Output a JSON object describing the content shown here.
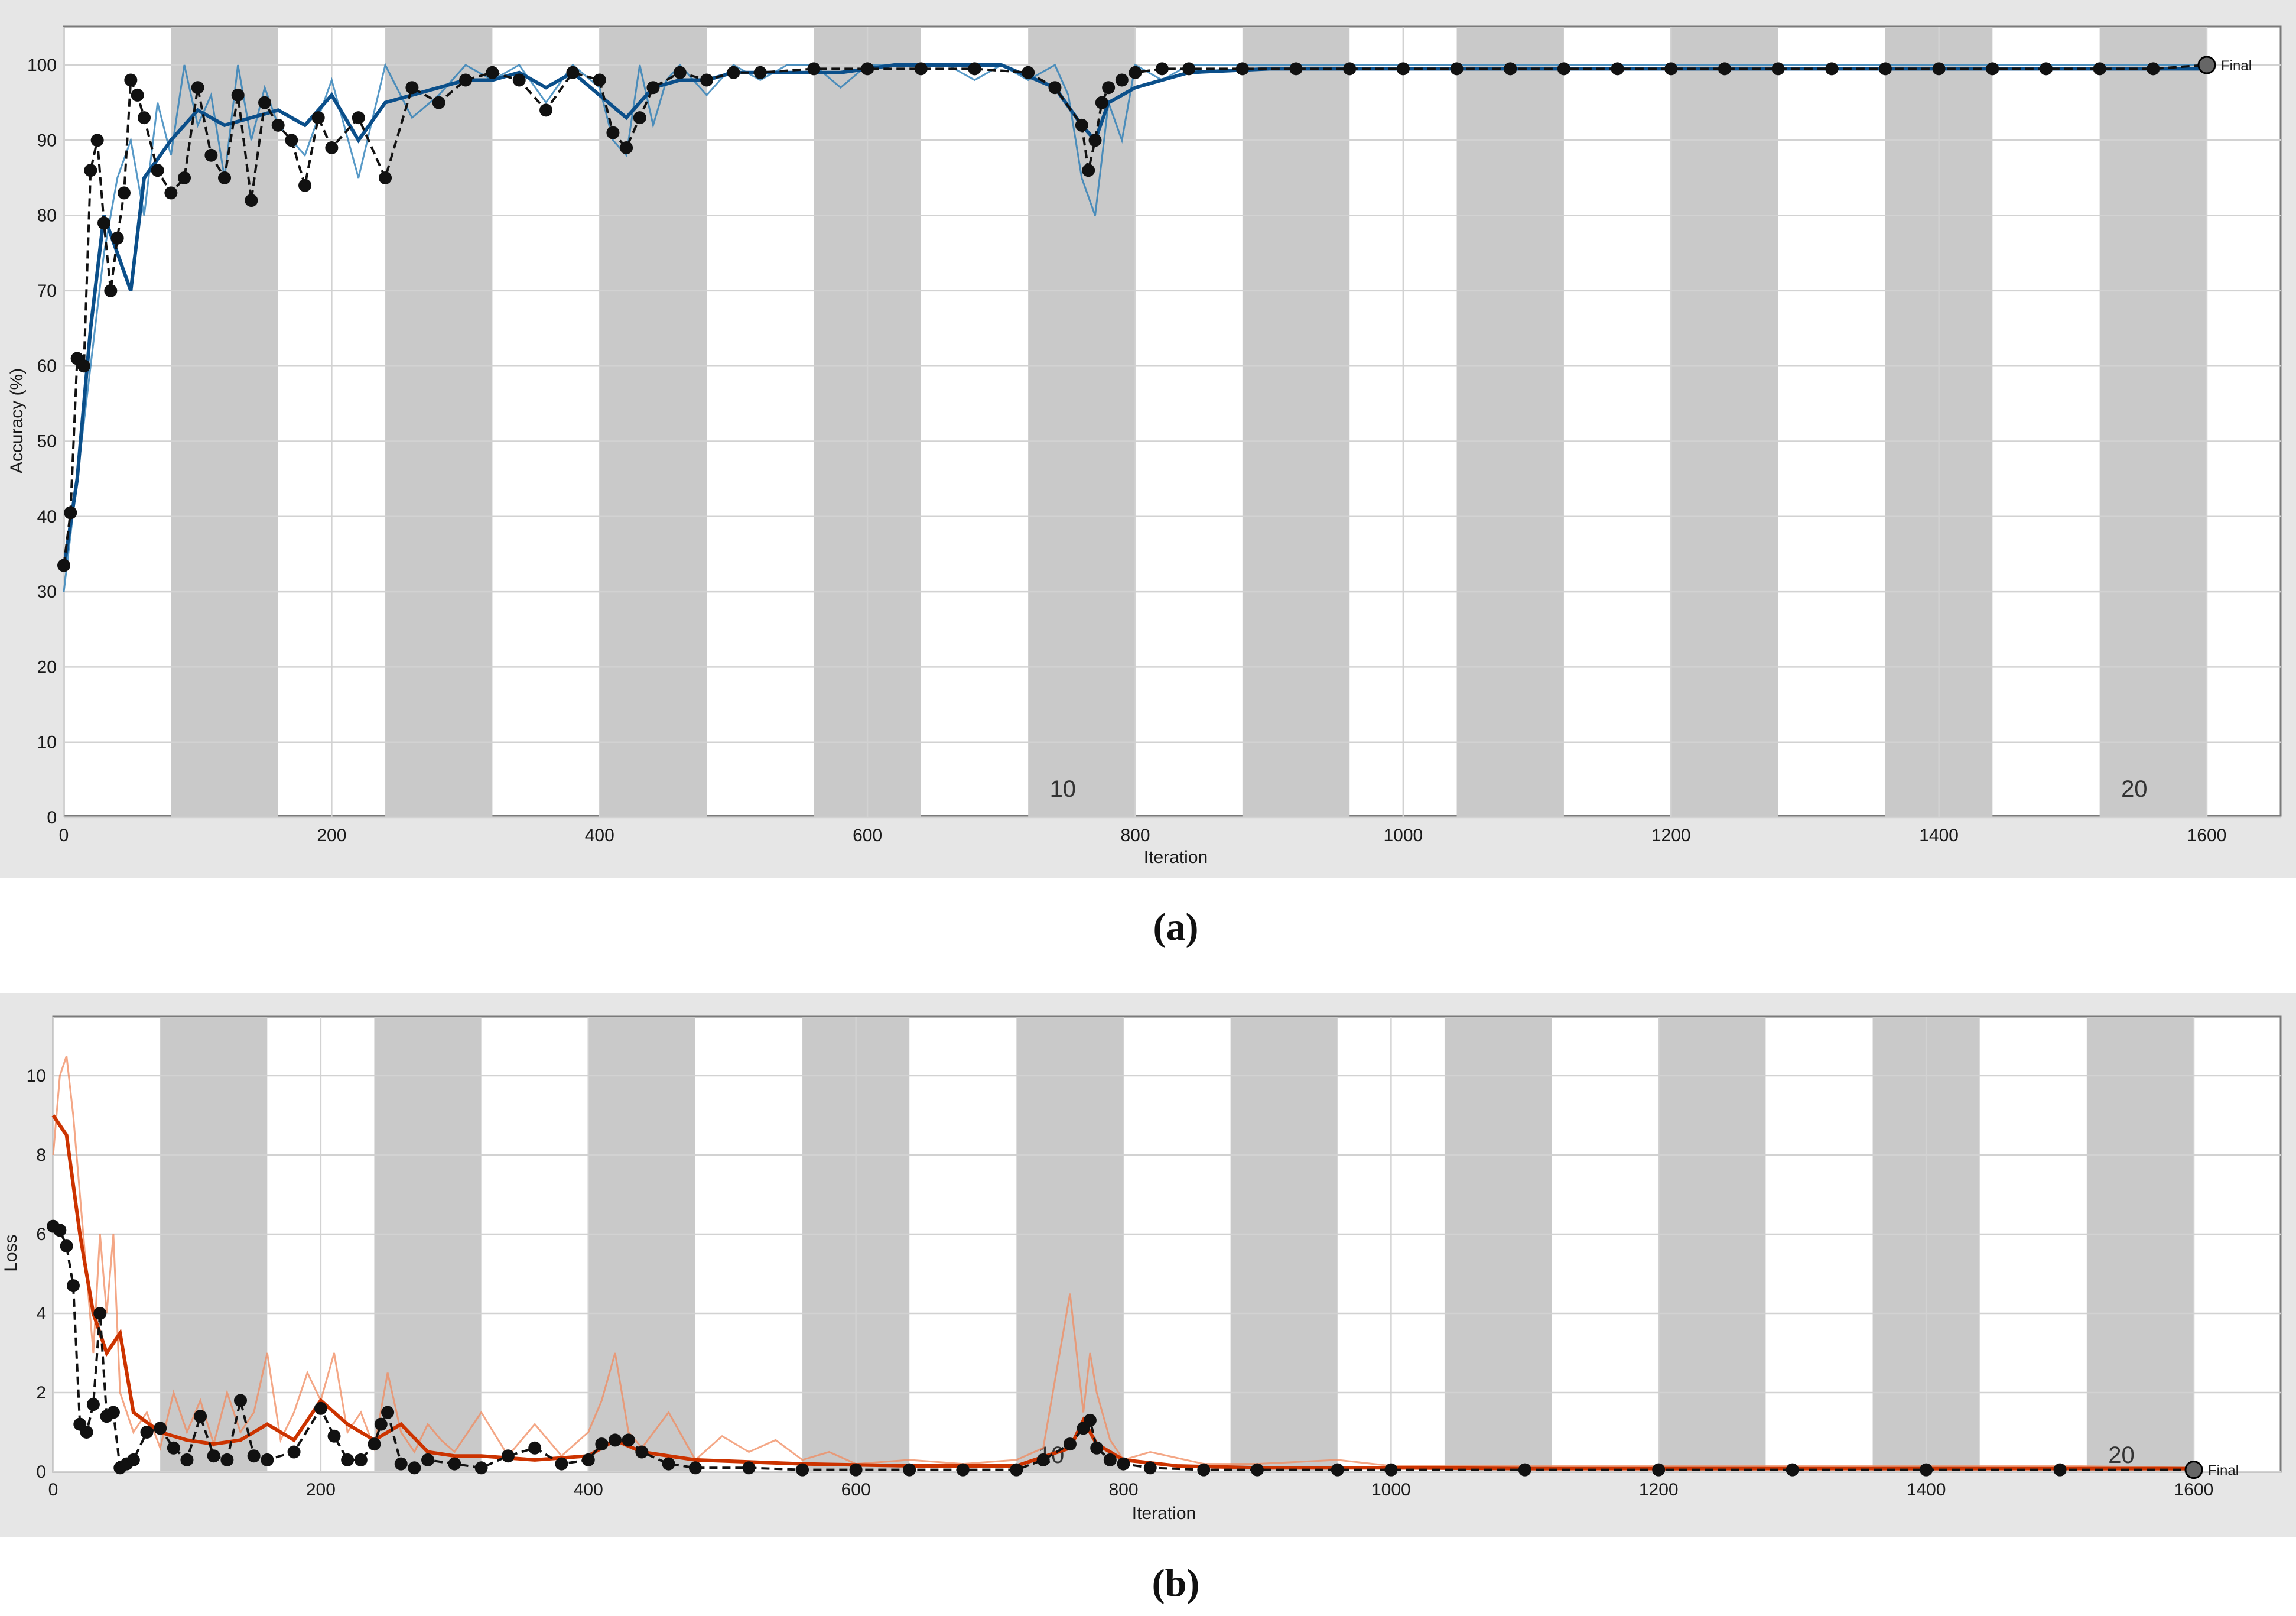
{
  "chart_data": [
    {
      "type": "line",
      "panel_label": "(a)",
      "ylabel": "Accuracy (%)",
      "xlabel": "Iteration",
      "xlim": [
        0,
        1600
      ],
      "ylim": [
        0,
        100
      ],
      "x_ticks": [
        0,
        200,
        400,
        600,
        800,
        1000,
        1200,
        1400,
        1600
      ],
      "y_ticks": [
        0,
        10,
        20,
        30,
        40,
        50,
        60,
        70,
        80,
        90,
        100
      ],
      "grid": true,
      "epoch_bands": [
        [
          80,
          160
        ],
        [
          240,
          320
        ],
        [
          400,
          480
        ],
        [
          560,
          640
        ],
        [
          720,
          800
        ],
        [
          880,
          960
        ],
        [
          1040,
          1120
        ],
        [
          1200,
          1280
        ],
        [
          1360,
          1440
        ],
        [
          1520,
          1600
        ]
      ],
      "epoch_markers": [
        {
          "x": 730,
          "label": "10"
        },
        {
          "x": 1530,
          "label": "20"
        }
      ],
      "final_label": "Final",
      "colors": {
        "training": "#1f77b4",
        "smoothed": "#0b4f8a",
        "validation": "#111111"
      },
      "series": [
        {
          "role": "training",
          "x": [
            0,
            10,
            20,
            30,
            40,
            50,
            60,
            70,
            80,
            90,
            100,
            110,
            120,
            130,
            140,
            150,
            160,
            180,
            200,
            220,
            240,
            260,
            280,
            300,
            320,
            340,
            360,
            380,
            400,
            410,
            420,
            430,
            440,
            450,
            460,
            480,
            500,
            520,
            540,
            560,
            580,
            600,
            620,
            640,
            660,
            680,
            700,
            720,
            740,
            750,
            760,
            770,
            780,
            790,
            800,
            820,
            840,
            860,
            880,
            900,
            940,
            980,
            1020,
            1060,
            1100,
            1140,
            1180,
            1220,
            1260,
            1300,
            1340,
            1380,
            1420,
            1460,
            1500,
            1540,
            1580,
            1600
          ],
          "y": [
            30,
            45,
            60,
            75,
            85,
            90,
            80,
            95,
            88,
            100,
            92,
            96,
            85,
            100,
            90,
            97,
            92,
            88,
            98,
            85,
            100,
            93,
            96,
            100,
            98,
            100,
            95,
            100,
            97,
            90,
            88,
            100,
            92,
            98,
            100,
            96,
            100,
            98,
            100,
            100,
            97,
            100,
            100,
            100,
            100,
            98,
            100,
            98,
            100,
            96,
            85,
            80,
            95,
            90,
            100,
            98,
            100,
            100,
            100,
            100,
            100,
            100,
            100,
            100,
            100,
            100,
            100,
            100,
            100,
            100,
            100,
            100,
            100,
            100,
            100,
            100,
            100,
            100
          ]
        },
        {
          "role": "smoothed",
          "x": [
            0,
            10,
            20,
            30,
            40,
            50,
            60,
            80,
            100,
            120,
            140,
            160,
            180,
            200,
            220,
            240,
            260,
            280,
            300,
            320,
            340,
            360,
            380,
            400,
            420,
            440,
            460,
            480,
            500,
            540,
            580,
            620,
            660,
            700,
            740,
            760,
            770,
            780,
            800,
            840,
            900,
            1000,
            1100,
            1200,
            1300,
            1400,
            1500,
            1600
          ],
          "y": [
            33,
            45,
            65,
            80,
            75,
            70,
            85,
            90,
            94,
            92,
            93,
            94,
            92,
            96,
            90,
            95,
            96,
            97,
            98,
            98,
            99,
            97,
            99,
            96,
            93,
            97,
            98,
            98,
            99,
            99,
            99,
            100,
            100,
            100,
            97,
            92,
            90,
            95,
            97,
            99,
            99.5,
            99.5,
            99.5,
            99.5,
            99.5,
            99.5,
            99.5,
            99.5
          ]
        },
        {
          "role": "validation",
          "x": [
            0,
            5,
            10,
            15,
            20,
            25,
            30,
            35,
            40,
            45,
            50,
            55,
            60,
            70,
            80,
            90,
            100,
            110,
            120,
            130,
            140,
            150,
            160,
            170,
            180,
            190,
            200,
            220,
            240,
            260,
            280,
            300,
            320,
            340,
            360,
            380,
            400,
            410,
            420,
            430,
            440,
            460,
            480,
            500,
            520,
            560,
            600,
            640,
            680,
            720,
            740,
            760,
            765,
            770,
            775,
            780,
            790,
            800,
            820,
            840,
            880,
            920,
            960,
            1000,
            1040,
            1080,
            1120,
            1160,
            1200,
            1240,
            1280,
            1320,
            1360,
            1400,
            1440,
            1480,
            1520,
            1560,
            1600
          ],
          "y": [
            33.5,
            40.5,
            61,
            60,
            86,
            90,
            79,
            70,
            77,
            83,
            98,
            96,
            93,
            86,
            83,
            85,
            97,
            88,
            85,
            96,
            82,
            95,
            92,
            90,
            84,
            93,
            89,
            93,
            85,
            97,
            95,
            98,
            99,
            98,
            94,
            99,
            98,
            91,
            89,
            93,
            97,
            99,
            98,
            99,
            99,
            99.5,
            99.5,
            99.5,
            99.5,
            99,
            97,
            92,
            86,
            90,
            95,
            97,
            98,
            99,
            99.5,
            99.5,
            99.5,
            99.5,
            99.5,
            99.5,
            99.5,
            99.5,
            99.5,
            99.5,
            99.5,
            99.5,
            99.5,
            99.5,
            99.5,
            99.5,
            99.5,
            99.5,
            99.5,
            99.5,
            100
          ]
        }
      ]
    },
    {
      "type": "line",
      "panel_label": "(b)",
      "ylabel": "Loss",
      "xlabel": "Iteration",
      "xlim": [
        0,
        1600
      ],
      "ylim": [
        0,
        11
      ],
      "x_ticks": [
        0,
        200,
        400,
        600,
        800,
        1000,
        1200,
        1400,
        1600
      ],
      "y_ticks": [
        0,
        2,
        4,
        6,
        8,
        10
      ],
      "grid": true,
      "epoch_bands": [
        [
          80,
          160
        ],
        [
          240,
          320
        ],
        [
          400,
          480
        ],
        [
          560,
          640
        ],
        [
          720,
          800
        ],
        [
          880,
          960
        ],
        [
          1040,
          1120
        ],
        [
          1200,
          1280
        ],
        [
          1360,
          1440
        ],
        [
          1520,
          1600
        ]
      ],
      "epoch_markers": [
        {
          "x": 730,
          "label": "10"
        },
        {
          "x": 1530,
          "label": "20"
        }
      ],
      "final_label": "Final",
      "colors": {
        "training": "#f08a5d",
        "smoothed": "#cc3300",
        "validation": "#111111"
      },
      "series": [
        {
          "role": "training",
          "x": [
            0,
            5,
            10,
            15,
            20,
            25,
            30,
            35,
            40,
            45,
            50,
            55,
            60,
            70,
            80,
            90,
            100,
            110,
            120,
            130,
            140,
            150,
            160,
            170,
            180,
            190,
            200,
            210,
            220,
            230,
            240,
            250,
            260,
            270,
            280,
            290,
            300,
            320,
            340,
            360,
            380,
            400,
            410,
            420,
            430,
            440,
            460,
            480,
            500,
            520,
            540,
            560,
            580,
            600,
            640,
            680,
            720,
            740,
            760,
            770,
            775,
            780,
            790,
            800,
            820,
            860,
            900,
            960,
            1000,
            1100,
            1200,
            1300,
            1400,
            1500,
            1600
          ],
          "y": [
            8,
            10,
            10.5,
            9,
            7,
            5,
            3,
            6,
            4,
            6,
            2,
            1.5,
            1,
            1.5,
            0.6,
            2,
            1,
            1.8,
            0.7,
            2,
            1,
            1.5,
            3,
            0.8,
            1.5,
            2.5,
            1.8,
            3,
            1,
            1.5,
            0.6,
            2.5,
            1,
            0.5,
            1.2,
            0.8,
            0.5,
            1.5,
            0.4,
            1.2,
            0.4,
            1,
            1.8,
            3,
            1,
            0.6,
            1.5,
            0.3,
            0.9,
            0.5,
            0.8,
            0.3,
            0.5,
            0.2,
            0.3,
            0.2,
            0.3,
            0.6,
            4.5,
            1.5,
            3,
            2,
            0.8,
            0.3,
            0.5,
            0.2,
            0.2,
            0.3,
            0.15,
            0.15,
            0.15,
            0.15,
            0.15,
            0.15,
            0.1
          ]
        },
        {
          "role": "smoothed",
          "x": [
            0,
            10,
            20,
            30,
            40,
            50,
            60,
            80,
            100,
            120,
            140,
            160,
            180,
            200,
            220,
            240,
            260,
            280,
            300,
            320,
            360,
            400,
            420,
            440,
            480,
            520,
            560,
            640,
            720,
            760,
            770,
            780,
            800,
            840,
            900,
            1000,
            1100,
            1200,
            1300,
            1400,
            1500,
            1600
          ],
          "y": [
            9,
            8.5,
            6,
            4,
            3,
            3.5,
            1.5,
            1,
            0.8,
            0.7,
            0.8,
            1.2,
            0.8,
            1.8,
            1.2,
            0.8,
            1.2,
            0.5,
            0.4,
            0.4,
            0.3,
            0.4,
            0.8,
            0.5,
            0.3,
            0.25,
            0.2,
            0.15,
            0.15,
            0.6,
            1.3,
            0.7,
            0.3,
            0.15,
            0.1,
            0.1,
            0.08,
            0.08,
            0.08,
            0.08,
            0.08,
            0.08
          ]
        },
        {
          "role": "validation",
          "x": [
            0,
            5,
            10,
            15,
            20,
            25,
            30,
            35,
            40,
            45,
            50,
            55,
            60,
            70,
            80,
            90,
            100,
            110,
            120,
            130,
            140,
            150,
            160,
            180,
            200,
            210,
            220,
            230,
            240,
            245,
            250,
            260,
            270,
            280,
            300,
            320,
            340,
            360,
            380,
            400,
            410,
            420,
            430,
            440,
            460,
            480,
            520,
            560,
            600,
            640,
            680,
            720,
            740,
            760,
            770,
            775,
            780,
            790,
            800,
            820,
            860,
            900,
            960,
            1000,
            1100,
            1200,
            1300,
            1400,
            1500,
            1600
          ],
          "y": [
            6.2,
            6.1,
            5.7,
            4.7,
            1.2,
            1,
            1.7,
            4,
            1.4,
            1.5,
            0.1,
            0.2,
            0.3,
            1,
            1.1,
            0.6,
            0.3,
            1.4,
            0.4,
            0.3,
            1.8,
            0.4,
            0.3,
            0.5,
            1.6,
            0.9,
            0.3,
            0.3,
            0.7,
            1.2,
            1.5,
            0.2,
            0.1,
            0.3,
            0.2,
            0.1,
            0.4,
            0.6,
            0.2,
            0.3,
            0.7,
            0.8,
            0.8,
            0.5,
            0.2,
            0.1,
            0.1,
            0.05,
            0.05,
            0.05,
            0.05,
            0.05,
            0.3,
            0.7,
            1.1,
            1.3,
            0.6,
            0.3,
            0.2,
            0.1,
            0.05,
            0.05,
            0.05,
            0.05,
            0.05,
            0.05,
            0.05,
            0.05,
            0.05,
            0.05
          ]
        }
      ]
    }
  ]
}
